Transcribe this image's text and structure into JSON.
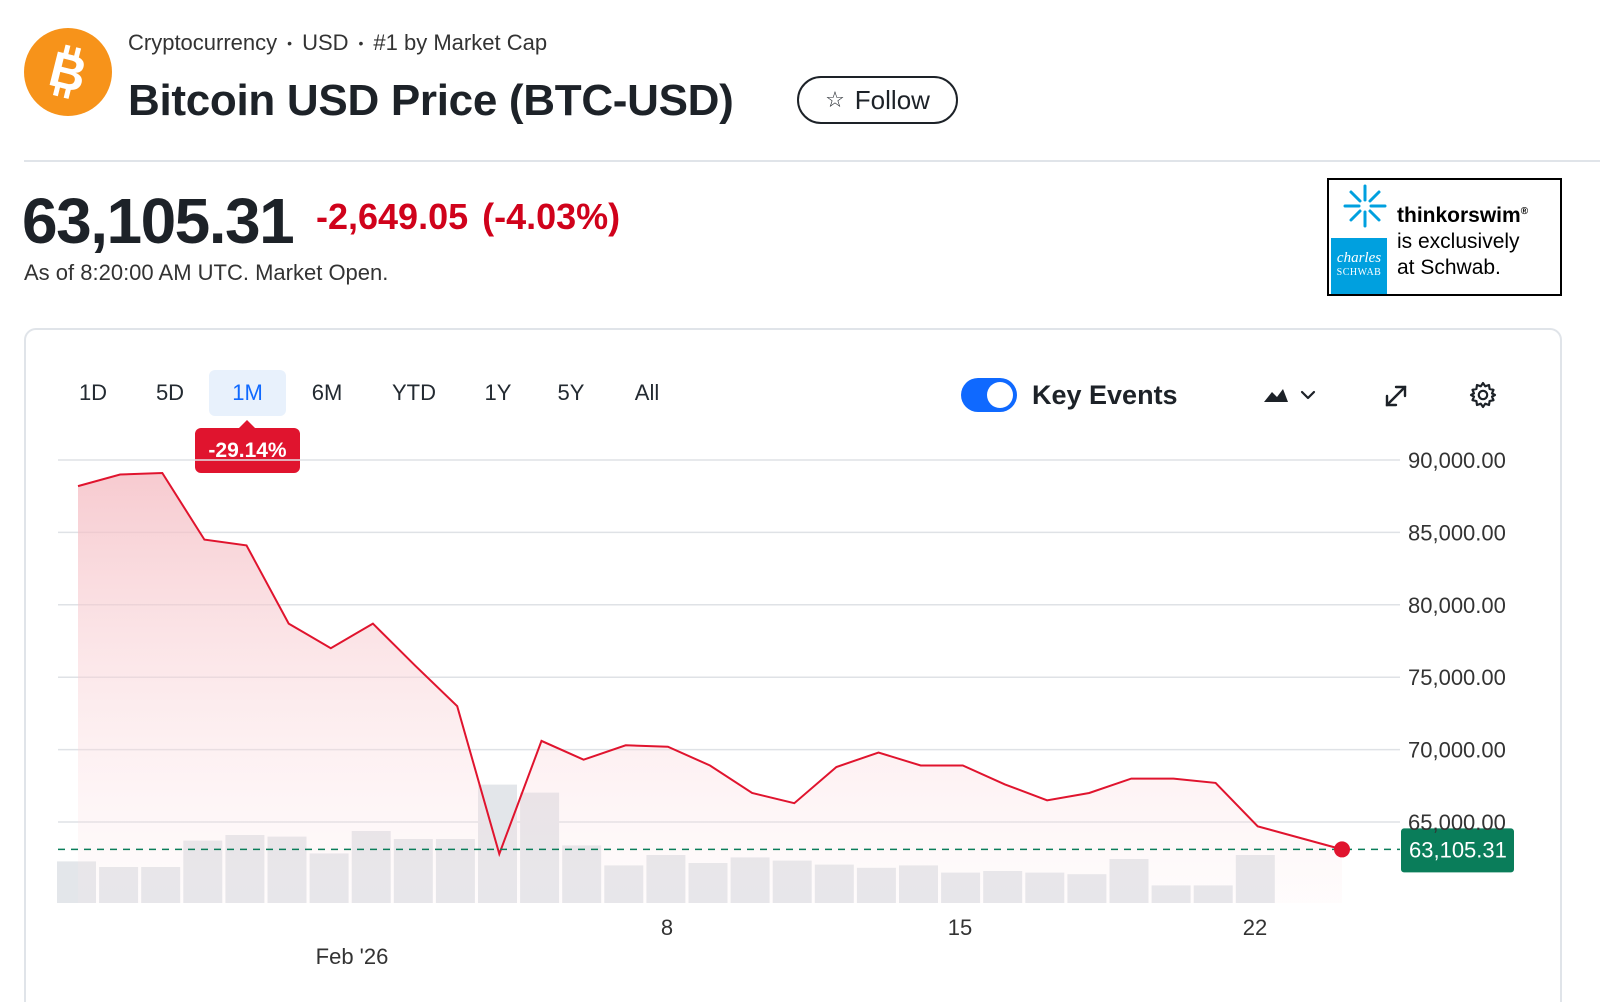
{
  "header": {
    "logo_icon": "bitcoin-logo-icon",
    "breadcrumb": [
      "Cryptocurrency",
      "USD",
      "#1 by Market Cap"
    ],
    "separator": "•",
    "title": "Bitcoin USD Price (BTC-USD)",
    "follow_label": "Follow",
    "follow_icon": "star-outline-icon"
  },
  "quote": {
    "price": "63,105.31",
    "change": "-2,649.05",
    "change_pct": "(-4.03%)",
    "as_of": "As of 8:20:00 AM UTC. Market Open.",
    "negative_color": "#d0021b"
  },
  "ad": {
    "brand_line": "charles",
    "brand_line2": "SCHWAB",
    "product": "thinkorswim",
    "reg": "®",
    "line2": "is exclusively",
    "line3": "at Schwab.",
    "brand_color": "#00a0df"
  },
  "toolbar": {
    "ranges": [
      "1D",
      "5D",
      "1M",
      "6M",
      "YTD",
      "1Y",
      "5Y",
      "All"
    ],
    "active_range": "1M",
    "range_change": "-29.14%",
    "key_events_label": "Key Events",
    "key_events_on": true,
    "icons": [
      "mountain-chart-type-icon",
      "chevron-down-icon",
      "expand-icon",
      "gear-icon"
    ]
  },
  "chart_data": {
    "type": "area",
    "x_tick_labels": [
      "8",
      "15",
      "22"
    ],
    "x_month_label": "Feb '26",
    "y_tick_labels": [
      "90,000.00",
      "85,000.00",
      "80,000.00",
      "75,000.00",
      "70,000.00",
      "65,000.00"
    ],
    "ylim": [
      57000,
      91000
    ],
    "last_price_label": "63,105.31",
    "last_price": 63105.31,
    "series": [
      {
        "values": [
          88200,
          89000,
          89100,
          84500,
          84100,
          78700,
          77000,
          78700,
          75800,
          73000,
          62800,
          70600,
          69300,
          70300,
          70200,
          68900,
          67000,
          66300,
          68800,
          69800,
          68900,
          68900,
          67600,
          66500,
          67000,
          68000,
          68000,
          67700,
          64700,
          63900,
          63105.31
        ]
      }
    ],
    "volume": [
      0.52,
      0.45,
      0.45,
      0.78,
      0.85,
      0.83,
      0.62,
      0.9,
      0.8,
      0.8,
      1.48,
      1.38,
      0.72,
      0.47,
      0.6,
      0.5,
      0.57,
      0.53,
      0.48,
      0.44,
      0.47,
      0.38,
      0.4,
      0.38,
      0.36,
      0.55,
      0.22,
      0.22,
      0.6
    ],
    "line_color": "#e0142e",
    "price_label_color": "#0a7d5a",
    "volume_color": "#e3e6ea",
    "grid": true
  }
}
